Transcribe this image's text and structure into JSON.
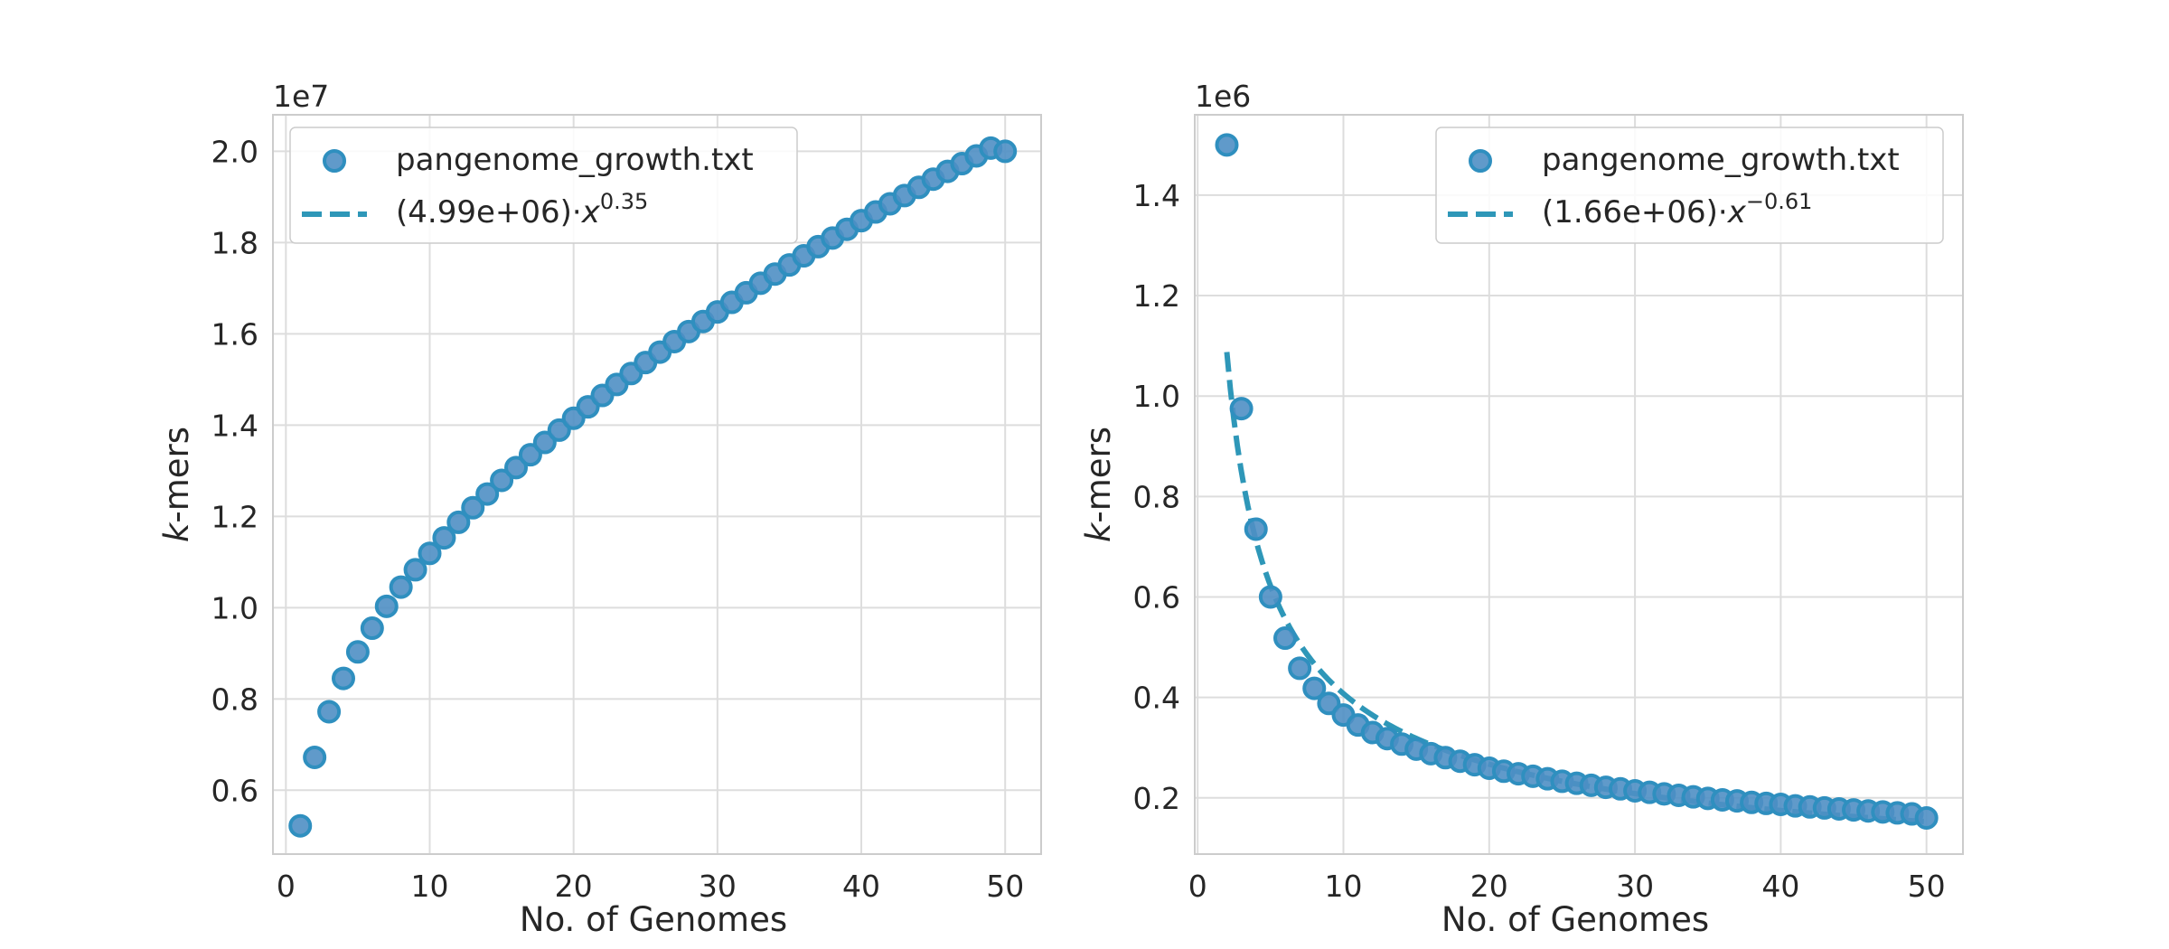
{
  "colors": {
    "marker_fill": "#4f8fc4",
    "marker_edge": "#2f8fbf",
    "fit_line": "#2e97b8",
    "grid": "#dddddd",
    "spine": "#cccccc",
    "text": "#262626"
  },
  "chart_data": [
    {
      "type": "scatter",
      "xlabel": "No. of Genomes",
      "ylabel_italic": "k",
      "ylabel_rest": "-mers",
      "offset_text": "1e7",
      "xlim": [
        -0.9,
        52.5
      ],
      "ylim": [
        0.46,
        2.08
      ],
      "x_ticks": [
        0,
        10,
        20,
        30,
        40,
        50
      ],
      "x_tick_labels": [
        "0",
        "10",
        "20",
        "30",
        "40",
        "50"
      ],
      "y_ticks": [
        0.6,
        0.8,
        1.0,
        1.2,
        1.4,
        1.6,
        1.8,
        2.0
      ],
      "y_tick_labels": [
        "0.6",
        "0.8",
        "1.0",
        "1.2",
        "1.4",
        "1.6",
        "1.8",
        "2.0"
      ],
      "grid": true,
      "legend_position": "top-left",
      "fit": {
        "coef": 4.99,
        "exp": 0.35,
        "x_from": 1,
        "x_to": 50
      },
      "fit_label_base": "(4.99e+06)·",
      "fit_label_var": "x",
      "fit_label_exp": "0.35",
      "series": [
        {
          "name": "pangenome_growth.txt",
          "x": [
            1,
            2,
            3,
            4,
            5,
            6,
            7,
            8,
            9,
            10,
            11,
            12,
            13,
            14,
            15,
            16,
            17,
            18,
            19,
            20,
            21,
            22,
            23,
            24,
            25,
            26,
            27,
            28,
            29,
            30,
            31,
            32,
            33,
            34,
            35,
            36,
            37,
            38,
            39,
            40,
            41,
            42,
            43,
            44,
            45,
            46,
            47,
            48,
            49,
            50
          ],
          "y": [
            0.522,
            0.672,
            0.772,
            0.845,
            0.903,
            0.955,
            1.003,
            1.045,
            1.083,
            1.119,
            1.153,
            1.187,
            1.219,
            1.249,
            1.279,
            1.307,
            1.335,
            1.362,
            1.389,
            1.415,
            1.44,
            1.465,
            1.489,
            1.513,
            1.537,
            1.56,
            1.583,
            1.605,
            1.627,
            1.648,
            1.669,
            1.69,
            1.711,
            1.731,
            1.751,
            1.771,
            1.791,
            1.81,
            1.829,
            1.848,
            1.867,
            1.885,
            1.903,
            1.921,
            1.939,
            1.956,
            1.973,
            1.99,
            2.007,
            2.0
          ]
        }
      ]
    },
    {
      "type": "scatter",
      "xlabel": "No. of Genomes",
      "ylabel_italic": "k",
      "ylabel_rest": "-mers",
      "offset_text": "1e6",
      "xlim": [
        -0.2,
        52.5
      ],
      "ylim": [
        0.088,
        1.56
      ],
      "x_ticks": [
        0,
        10,
        20,
        30,
        40,
        50
      ],
      "x_tick_labels": [
        "0",
        "10",
        "20",
        "30",
        "40",
        "50"
      ],
      "y_ticks": [
        0.2,
        0.4,
        0.6,
        0.8,
        1.0,
        1.2,
        1.4
      ],
      "y_tick_labels": [
        "0.2",
        "0.4",
        "0.6",
        "0.8",
        "1.0",
        "1.2",
        "1.4"
      ],
      "grid": true,
      "legend_position": "top-right",
      "fit": {
        "coef": 1.66,
        "exp": -0.61,
        "x_from": 2,
        "x_to": 50
      },
      "fit_label_base": "(1.66e+06)·",
      "fit_label_var": "x",
      "fit_label_exp": "−0.61",
      "series": [
        {
          "name": "pangenome_growth.txt",
          "x": [
            2,
            3,
            4,
            5,
            6,
            7,
            8,
            9,
            10,
            11,
            12,
            13,
            14,
            15,
            16,
            17,
            18,
            19,
            20,
            21,
            22,
            23,
            24,
            25,
            26,
            27,
            28,
            29,
            30,
            31,
            32,
            33,
            34,
            35,
            36,
            37,
            38,
            39,
            40,
            41,
            42,
            43,
            44,
            45,
            46,
            47,
            48,
            49,
            50
          ],
          "y": [
            1.5,
            0.975,
            0.735,
            0.6,
            0.518,
            0.458,
            0.418,
            0.388,
            0.365,
            0.345,
            0.33,
            0.318,
            0.307,
            0.297,
            0.288,
            0.28,
            0.273,
            0.266,
            0.259,
            0.253,
            0.248,
            0.243,
            0.238,
            0.233,
            0.229,
            0.225,
            0.221,
            0.218,
            0.214,
            0.211,
            0.208,
            0.205,
            0.202,
            0.199,
            0.196,
            0.194,
            0.191,
            0.189,
            0.187,
            0.184,
            0.182,
            0.18,
            0.178,
            0.176,
            0.174,
            0.172,
            0.17,
            0.168,
            0.16
          ]
        }
      ]
    }
  ]
}
